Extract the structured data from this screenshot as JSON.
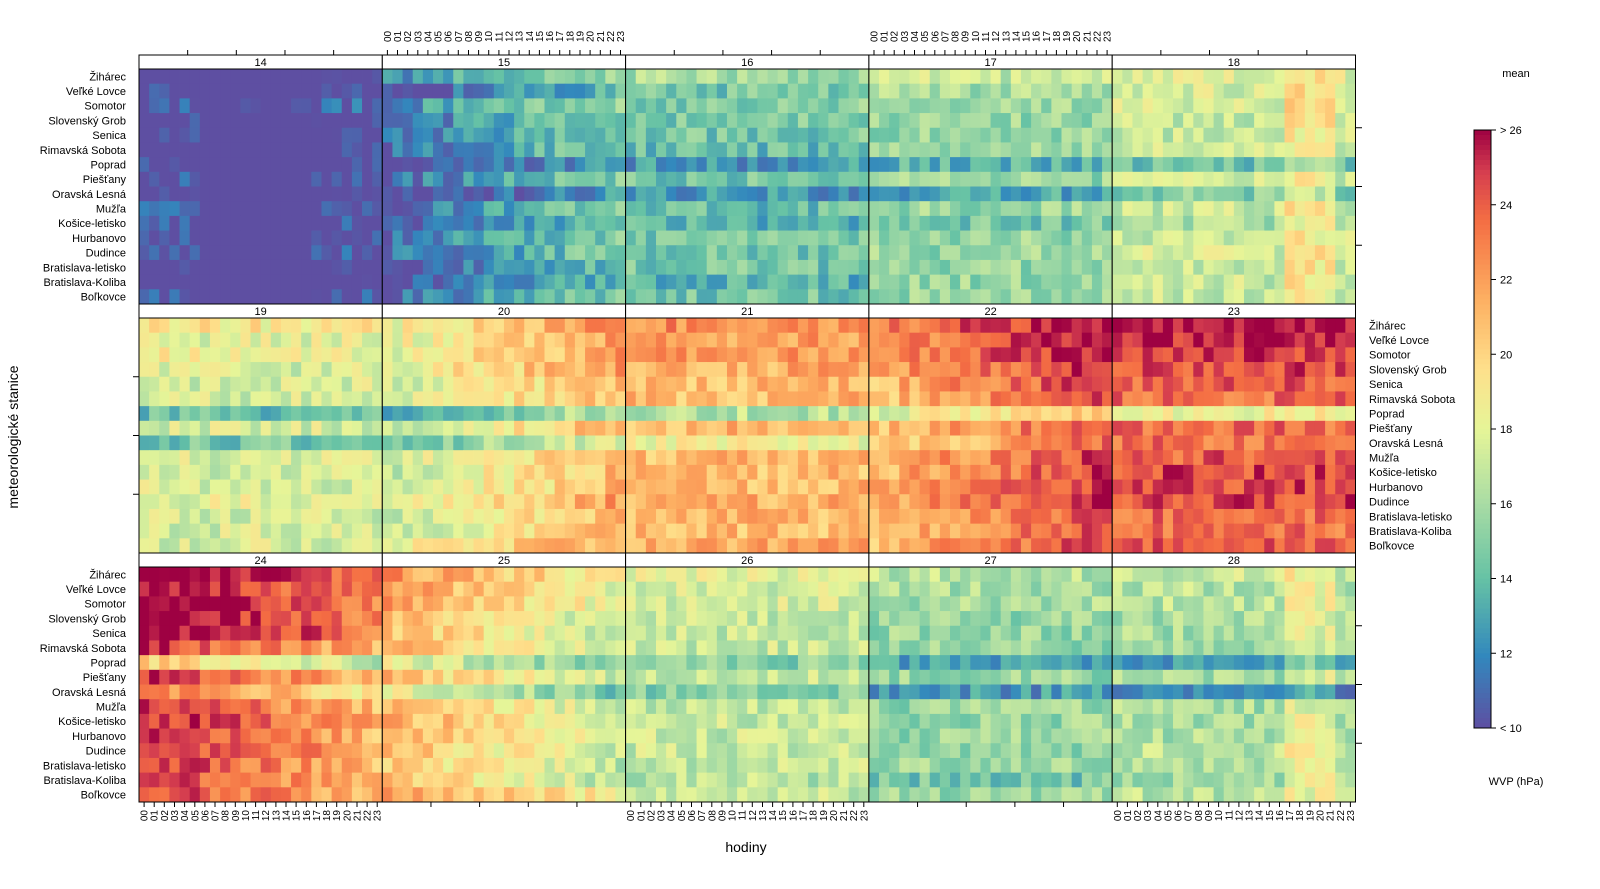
{
  "chart_data": {
    "type": "heatmap",
    "xlabel": "hodiny",
    "ylabel": "meteorologické stanice",
    "colorbar_title": "mean",
    "colorbar_units": "WVP (hPa)",
    "colorbar_range": [
      10,
      26
    ],
    "colorbar_ticks": [
      "< 10",
      "12",
      "14",
      "16",
      "18",
      "20",
      "22",
      "24",
      "> 26"
    ],
    "colorbar_tick_values": [
      10,
      12,
      14,
      16,
      18,
      20,
      22,
      24,
      26
    ],
    "hour_labels": [
      "00",
      "01",
      "02",
      "03",
      "04",
      "05",
      "06",
      "07",
      "08",
      "09",
      "10",
      "11",
      "12",
      "13",
      "14",
      "15",
      "16",
      "17",
      "18",
      "19",
      "20",
      "21",
      "22",
      "23"
    ],
    "stations": [
      "Žihárec",
      "Veľké Lovce",
      "Somotor",
      "Slovenský Grob",
      "Senica",
      "Rimavská Sobota",
      "Poprad",
      "Piešťany",
      "Oravská Lesná",
      "Mužľa",
      "Košice-letisko",
      "Hurbanovo",
      "Dudince",
      "Bratislava-letisko",
      "Bratislava-Koliba",
      "Boľkovce"
    ],
    "panels": [
      {
        "day": "14",
        "base": 9.5,
        "hour_pattern": "cold",
        "station_offsets": [
          0.5,
          0,
          1.5,
          0,
          0,
          0,
          0,
          1,
          -0.5,
          1,
          1,
          0.5,
          1,
          0,
          0,
          1
        ]
      },
      {
        "day": "15",
        "base": 13,
        "hour_pattern": "rise",
        "station_offsets": [
          1,
          -1,
          1,
          0,
          0,
          0,
          -2,
          0,
          -2,
          0,
          -1,
          0,
          0,
          -1,
          -1,
          0
        ]
      },
      {
        "day": "16",
        "base": 14.5,
        "hour_pattern": "flat",
        "station_offsets": [
          1.5,
          0,
          0.5,
          0,
          0,
          -0.5,
          -2,
          0,
          -2,
          -0.5,
          -1,
          0,
          0,
          0,
          -1,
          0
        ]
      },
      {
        "day": "17",
        "base": 15.5,
        "hour_pattern": "flat",
        "station_offsets": [
          1.5,
          0.5,
          0.5,
          0,
          0,
          0,
          -2,
          0,
          -2.5,
          0,
          -1,
          0,
          0,
          0,
          0,
          0
        ]
      },
      {
        "day": "18",
        "base": 17,
        "hour_pattern": "evening",
        "station_offsets": [
          1,
          0.5,
          0.5,
          0,
          0,
          0,
          -3,
          0,
          -2,
          0,
          -1,
          0,
          0.5,
          0,
          0,
          0
        ]
      },
      {
        "day": "19",
        "base": 17.5,
        "hour_pattern": "flat",
        "station_offsets": [
          1.5,
          0.5,
          1,
          0,
          0,
          0,
          -3.5,
          0,
          -3,
          0,
          0,
          0,
          0.5,
          0,
          0,
          0
        ]
      },
      {
        "day": "20",
        "base": 19,
        "hour_pattern": "rise",
        "station_offsets": [
          1.5,
          1,
          1,
          1,
          0,
          0,
          -4,
          0,
          -3,
          0,
          0,
          0,
          1,
          0,
          0,
          1
        ]
      },
      {
        "day": "21",
        "base": 21,
        "hour_pattern": "flat",
        "station_offsets": [
          1.5,
          1,
          1,
          0.5,
          0,
          0,
          -4.5,
          0,
          -2.5,
          0,
          0,
          0,
          0.5,
          0,
          0,
          0.5
        ]
      },
      {
        "day": "22",
        "base": 22.5,
        "hour_pattern": "rise",
        "station_offsets": [
          2,
          1.5,
          1.5,
          1,
          0.5,
          0,
          -3,
          0,
          -1,
          0.5,
          0.5,
          0.5,
          1,
          0,
          0,
          0.5
        ]
      },
      {
        "day": "23",
        "base": 23.5,
        "hour_pattern": "flat",
        "station_offsets": [
          2.5,
          2,
          1.5,
          1,
          0.5,
          0,
          -5,
          0,
          0,
          0.5,
          1,
          1,
          1,
          0,
          0,
          0.5
        ]
      },
      {
        "day": "24",
        "base": 23,
        "hour_pattern": "fall",
        "station_offsets": [
          2.5,
          1.5,
          2,
          2,
          2,
          0,
          -4.5,
          0,
          -2,
          0,
          0.5,
          0,
          0.5,
          0,
          0,
          0
        ]
      },
      {
        "day": "25",
        "base": 19,
        "hour_pattern": "fall",
        "station_offsets": [
          1.5,
          1,
          1,
          0,
          0,
          0,
          -2.5,
          0,
          -2.5,
          0,
          0.5,
          0.5,
          0,
          -0.5,
          -0.5,
          1.5
        ]
      },
      {
        "day": "26",
        "base": 17,
        "hour_pattern": "flat",
        "station_offsets": [
          1,
          0.5,
          0.5,
          0,
          0,
          0,
          -2,
          0,
          -2,
          0,
          0,
          0,
          0,
          0,
          -0.5,
          0
        ]
      },
      {
        "day": "27",
        "base": 15.5,
        "hour_pattern": "flat",
        "station_offsets": [
          1,
          0.5,
          0.5,
          0,
          0,
          0,
          -2.5,
          0,
          -3,
          0,
          0,
          0,
          0,
          0,
          -1,
          0
        ]
      },
      {
        "day": "28",
        "base": 16,
        "hour_pattern": "evening",
        "station_offsets": [
          1,
          0.5,
          0.5,
          0,
          0,
          0,
          -3,
          0,
          -4,
          0,
          0,
          0,
          0.5,
          0,
          0,
          0.5
        ]
      }
    ]
  }
}
